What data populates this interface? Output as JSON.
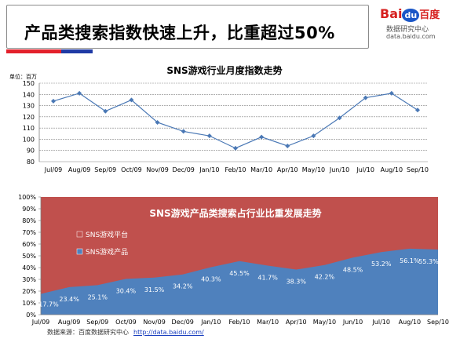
{
  "header": {
    "title": "产品类搜索指数快速上升，比重超过50%"
  },
  "logo": {
    "brand_bai": "Bai",
    "brand_du": "du",
    "brand_cn": "百度",
    "subtitle": "数据研究中心",
    "domain": "data.baidu.com"
  },
  "footer": {
    "source": "数据来源：百度数据研究中心",
    "url": "http://data.baidu.com/"
  },
  "colors": {
    "line": "#4a78b5",
    "area_blue": "#4f81bd",
    "area_red": "#c0504d",
    "accent_red": "#e3202b",
    "accent_blue": "#1f3aa5"
  },
  "chart_data": [
    {
      "type": "line",
      "title": "SNS游戏行业月度指数走势",
      "unit_label": "单位：百万",
      "categories": [
        "Jul/09",
        "Aug/09",
        "Sep/09",
        "Oct/09",
        "Nov/09",
        "Dec/09",
        "Jan/10",
        "Feb/10",
        "Mar/10",
        "Apr/10",
        "May/10",
        "Jun/10",
        "Jul/10",
        "Aug/10",
        "Sep/10"
      ],
      "values": [
        134,
        141,
        125,
        135,
        115,
        107,
        103,
        92,
        102,
        94,
        103,
        119,
        137,
        141,
        126
      ],
      "ylim": [
        80,
        150
      ],
      "yticks": [
        80,
        90,
        100,
        110,
        120,
        130,
        140,
        150
      ],
      "grid": true
    },
    {
      "type": "area",
      "title": "SNS游戏产品类搜索占行业比重发展走势",
      "categories": [
        "Jul/09",
        "Aug/09",
        "Sep/09",
        "Oct/09",
        "Nov/09",
        "Dec/09",
        "Jan/10",
        "Feb/10",
        "Mar/10",
        "Apr/10",
        "May/10",
        "Jun/10",
        "Jul/10",
        "Aug/10",
        "Sep/10"
      ],
      "series": [
        {
          "name": "SNS游戏产品",
          "values": [
            17.7,
            23.4,
            25.1,
            30.4,
            31.5,
            34.2,
            40.3,
            45.5,
            41.7,
            38.3,
            42.2,
            48.5,
            53.2,
            56.1,
            55.3
          ]
        },
        {
          "name": "SNS游戏平台"
        }
      ],
      "data_labels": [
        "17.7%",
        "23.4%",
        "25.1%",
        "30.4%",
        "31.5%",
        "34.2%",
        "40.3%",
        "45.5%",
        "41.7%",
        "38.3%",
        "42.2%",
        "48.5%",
        "53.2%",
        "56.1%",
        "55.3%"
      ],
      "ylim": [
        0,
        100
      ],
      "yticks": [
        "0%",
        "10%",
        "20%",
        "30%",
        "40%",
        "50%",
        "60%",
        "70%",
        "80%",
        "90%",
        "100%"
      ],
      "legend": "left"
    }
  ]
}
